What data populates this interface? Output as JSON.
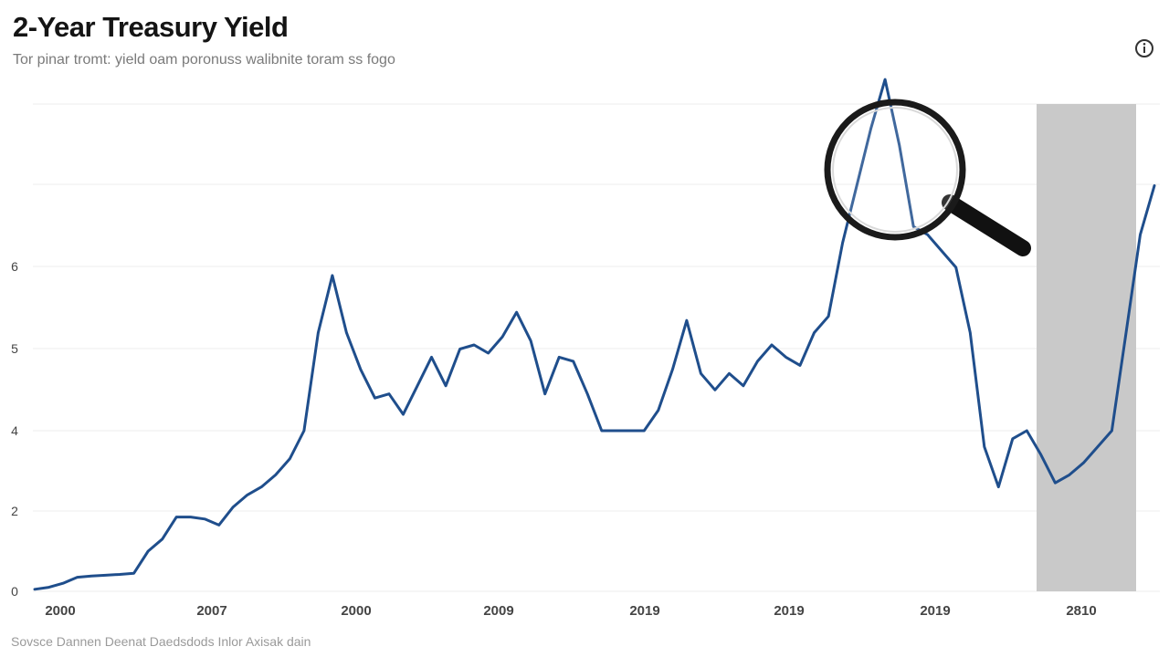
{
  "header": {
    "title": "2-Year Treasury Yield",
    "subtitle": "Tor pinar tromt: yield oam poronuss walibnite toram ss fogo",
    "info_icon": "info-icon"
  },
  "footer": {
    "source": "Sovsce Dannen Deenat Daedsdods Inlor Axisak dain"
  },
  "colors": {
    "line": "#1f4e8c",
    "shade": "#c9c9c9",
    "grid": "#ececec"
  },
  "chart_data": {
    "type": "line",
    "title": "2-Year Treasury Yield",
    "xlabel": "",
    "ylabel": "",
    "y_ticks": [
      "0",
      "2",
      "4",
      "5",
      "6"
    ],
    "x_ticks": [
      "2000",
      "2007",
      "2000",
      "2009",
      "2019",
      "2019",
      "2019",
      "2810"
    ],
    "grid": true,
    "annotations": [
      "magnifier-over-peak",
      "shaded-recession-band"
    ],
    "series": [
      {
        "values": [
          0.05,
          0.1,
          0.2,
          0.35,
          0.38,
          0.4,
          0.42,
          0.45,
          1.0,
          1.3,
          1.85,
          1.85,
          1.8,
          1.65,
          2.1,
          2.4,
          2.6,
          2.9,
          3.3,
          4.0,
          5.2,
          5.9,
          5.2,
          4.75,
          4.4,
          4.45,
          4.2,
          4.55,
          4.9,
          4.55,
          5.0,
          5.05,
          4.95,
          5.15,
          5.45,
          5.1,
          4.45,
          4.9,
          4.85,
          4.45,
          4.0,
          4.0,
          4.0,
          4.0,
          4.25,
          4.75,
          5.35,
          4.7,
          4.5,
          4.7,
          4.55,
          4.85,
          5.05,
          4.9,
          4.8,
          5.2,
          5.4,
          6.3,
          7.0,
          7.7,
          8.3,
          7.5,
          6.5,
          6.4,
          6.2,
          6.0,
          5.2,
          3.6,
          2.6,
          3.8,
          4.0,
          3.4,
          2.7,
          2.9,
          3.2,
          3.6,
          4.0,
          5.2,
          6.4,
          7.0
        ]
      }
    ],
    "shaded_band": {
      "x_start_index": 68,
      "x_end_index": 78
    }
  }
}
